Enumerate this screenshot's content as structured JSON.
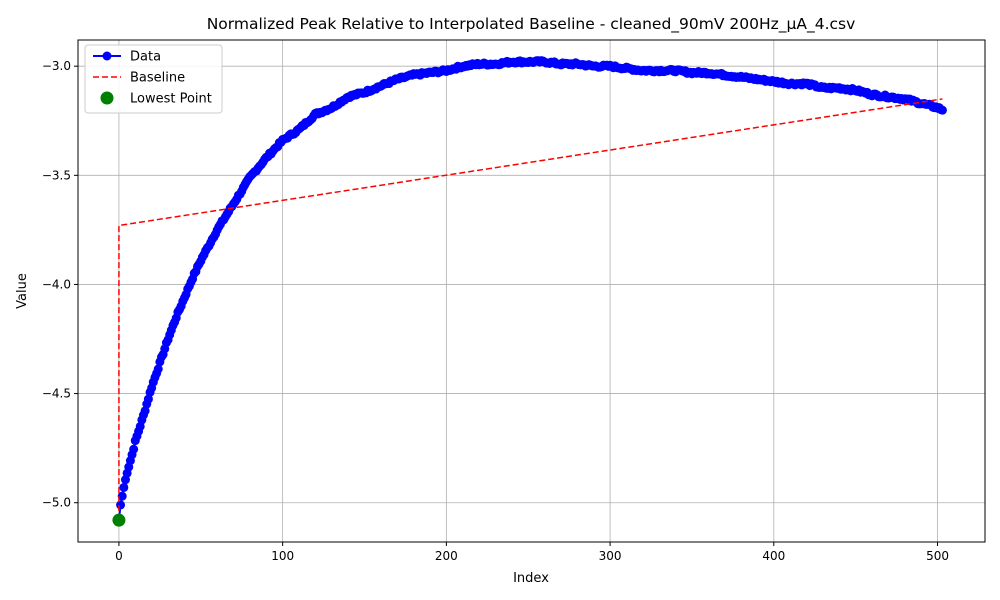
{
  "chart_data": {
    "type": "line",
    "title": "Normalized Peak Relative to Interpolated Baseline - cleaned_90mV 200Hz_µA_4.csv",
    "xlabel": "Index",
    "ylabel": "Value",
    "xlim": [
      -25,
      529
    ],
    "ylim": [
      -5.18,
      -2.88
    ],
    "grid": true,
    "legend_placement": "top-left",
    "x_ticks": [
      0,
      100,
      200,
      300,
      400,
      500
    ],
    "x_tick_labels": [
      "0",
      "100",
      "200",
      "300",
      "400",
      "500"
    ],
    "y_ticks": [
      -5.0,
      -4.5,
      -4.0,
      -3.5,
      -3.0
    ],
    "y_tick_labels": [
      "−5.0",
      "−4.5",
      "−4.0",
      "−3.5",
      "−3.0"
    ],
    "series": [
      {
        "name": "Data",
        "style": "line-marker",
        "color": "#0000ff",
        "n_points": 504,
        "model": "piecewise-linear through keypoints, small jitter",
        "keypoints": [
          [
            0,
            -5.08
          ],
          [
            1,
            -5.01
          ],
          [
            3,
            -4.93
          ],
          [
            5,
            -4.86
          ],
          [
            8,
            -4.78
          ],
          [
            10,
            -4.72
          ],
          [
            15,
            -4.6
          ],
          [
            20,
            -4.47
          ],
          [
            25,
            -4.36
          ],
          [
            30,
            -4.25
          ],
          [
            35,
            -4.15
          ],
          [
            40,
            -4.06
          ],
          [
            45,
            -3.97
          ],
          [
            50,
            -3.89
          ],
          [
            60,
            -3.75
          ],
          [
            70,
            -3.63
          ],
          [
            80,
            -3.51
          ],
          [
            90,
            -3.42
          ],
          [
            100,
            -3.34
          ],
          [
            110,
            -3.29
          ],
          [
            120,
            -3.22
          ],
          [
            130,
            -3.19
          ],
          [
            140,
            -3.14
          ],
          [
            150,
            -3.12
          ],
          [
            160,
            -3.09
          ],
          [
            170,
            -3.06
          ],
          [
            180,
            -3.04
          ],
          [
            190,
            -3.03
          ],
          [
            200,
            -3.02
          ],
          [
            210,
            -3.0
          ],
          [
            220,
            -2.99
          ],
          [
            230,
            -2.99
          ],
          [
            240,
            -2.98
          ],
          [
            250,
            -2.98
          ],
          [
            260,
            -2.98
          ],
          [
            270,
            -2.99
          ],
          [
            280,
            -2.99
          ],
          [
            290,
            -3.0
          ],
          [
            300,
            -3.0
          ],
          [
            310,
            -3.01
          ],
          [
            320,
            -3.02
          ],
          [
            330,
            -3.02
          ],
          [
            340,
            -3.02
          ],
          [
            350,
            -3.03
          ],
          [
            360,
            -3.03
          ],
          [
            370,
            -3.04
          ],
          [
            380,
            -3.05
          ],
          [
            390,
            -3.06
          ],
          [
            400,
            -3.07
          ],
          [
            410,
            -3.08
          ],
          [
            420,
            -3.08
          ],
          [
            430,
            -3.1
          ],
          [
            440,
            -3.1
          ],
          [
            450,
            -3.11
          ],
          [
            460,
            -3.13
          ],
          [
            470,
            -3.14
          ],
          [
            480,
            -3.15
          ],
          [
            490,
            -3.17
          ],
          [
            495,
            -3.18
          ],
          [
            500,
            -3.19
          ],
          [
            503,
            -3.2
          ]
        ]
      },
      {
        "name": "Baseline",
        "style": "dashed-line",
        "color": "#ff0000",
        "points": [
          [
            0,
            -5.08
          ],
          [
            0,
            -3.73
          ],
          [
            503,
            -3.15
          ]
        ]
      },
      {
        "name": "Lowest Point",
        "style": "scatter",
        "color": "#008000",
        "points": [
          [
            0,
            -5.08
          ]
        ]
      }
    ]
  }
}
